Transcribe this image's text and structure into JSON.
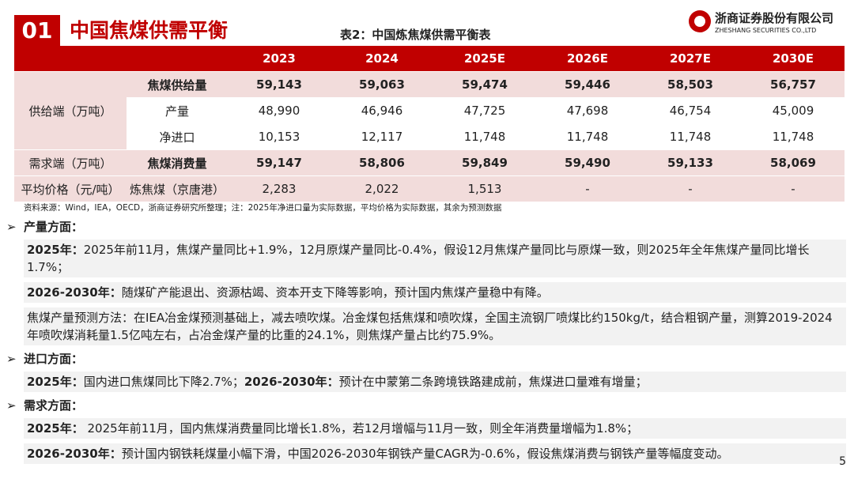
{
  "header": {
    "number": "01",
    "title": "中国焦煤供需平衡",
    "company_cn": "浙商证券股份有限公司",
    "company_en": "ZHESHANG SECURITIES CO.,LTD"
  },
  "table": {
    "caption": "表2：中国炼焦煤供需平衡表",
    "columns": [
      "2023",
      "2024",
      "2025E",
      "2026E",
      "2027E",
      "2030E"
    ],
    "rows": [
      {
        "group": "供给端（万吨）",
        "label": "焦煤供给量",
        "bold": true,
        "shade": true,
        "values": [
          "59,143",
          "59,063",
          "59,474",
          "59,446",
          "58,503",
          "56,757"
        ]
      },
      {
        "label": "产量",
        "bold": false,
        "shade": false,
        "values": [
          "48,990",
          "46,946",
          "47,725",
          "47,698",
          "46,754",
          "45,009"
        ]
      },
      {
        "label": "净进口",
        "bold": false,
        "shade": false,
        "values": [
          "10,153",
          "12,117",
          "11,748",
          "11,748",
          "11,748",
          "11,748"
        ]
      },
      {
        "group": "需求端（万吨）",
        "label": "焦煤消费量",
        "bold": true,
        "shade": true,
        "values": [
          "59,147",
          "58,806",
          "59,849",
          "59,490",
          "59,133",
          "58,069"
        ]
      },
      {
        "group": "平均价格（元/吨）",
        "label": "炼焦煤（京唐港）",
        "bold": false,
        "shade": true,
        "values": [
          "2,283",
          "2,022",
          "1,513",
          "-",
          "-",
          "-"
        ]
      }
    ],
    "source": "资料来源：Wind，IEA，OECD，浙商证券研究所整理；注：2025年净进口量为实际数据，平均价格为实际数据，其余为预测数据"
  },
  "sections": [
    {
      "heading": "产量方面：",
      "paragraphs": [
        [
          {
            "text": "2025年：",
            "bold": true
          },
          {
            "text": "2025年前11月，焦煤产量同比+1.9%，12月原煤产量同比-0.4%，假设12月焦煤产量同比与原煤一致，则2025年全年焦煤产量同比增长1.7%；",
            "bold": false
          }
        ],
        [
          {
            "text": "2026-2030年：",
            "bold": true
          },
          {
            "text": "随煤矿产能退出、资源枯竭、资本开支下降等影响，预计国内焦煤产量稳中有降。",
            "bold": false
          }
        ],
        [
          {
            "text": "焦煤产量预测方法：在IEA冶金煤预测基础上，减去喷吹煤。冶金煤包括焦煤和喷吹煤，全国主流钢厂喷煤比约150kg/t，结合粗钢产量，测算2019-2024年喷吹煤消耗量1.5亿吨左右，占冶金煤产量的比重的24.1%，则焦煤产量占比约75.9%。",
            "bold": false
          }
        ]
      ]
    },
    {
      "heading": "进口方面：",
      "paragraphs": [
        [
          {
            "text": "2025年：",
            "bold": true
          },
          {
            "text": "国内进口焦煤同比下降2.7%；",
            "bold": false
          },
          {
            "text": "2026-2030年：",
            "bold": true
          },
          {
            "text": "预计在中蒙第二条跨境铁路建成前，焦煤进口量难有增量；",
            "bold": false
          }
        ]
      ]
    },
    {
      "heading": "需求方面：",
      "paragraphs": [
        [
          {
            "text": "2025年：",
            "bold": true
          },
          {
            "text": " 2025年前11月，国内焦煤消费量同比增长1.8%，若12月增幅与11月一致，则全年消费量增幅为1.8%；",
            "bold": false
          }
        ],
        [
          {
            "text": "2026-2030年：",
            "bold": true
          },
          {
            "text": "预计国内钢铁耗煤量小幅下滑，中国2026-2030年钢铁产量CAGR为-0.6%，假设焦煤消费与钢铁产量等幅度变动。",
            "bold": false
          }
        ]
      ]
    }
  ],
  "page_number": "5"
}
